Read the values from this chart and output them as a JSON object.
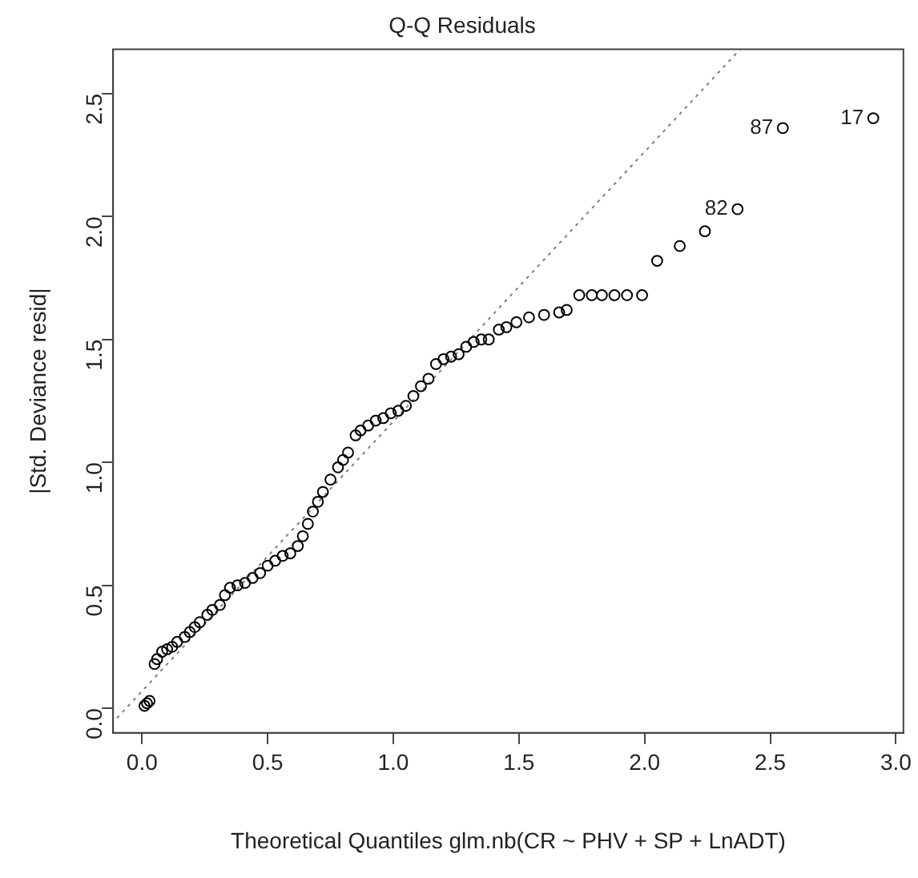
{
  "chart_data": {
    "type": "scatter",
    "title": "Q-Q Residuals",
    "xlabel": "Theoretical Quantiles glm.nb(CR ~ PHV + SP + LnADT)",
    "ylabel": "|Std. Deviance resid|",
    "xlim": [
      -0.115,
      3.03
    ],
    "ylim": [
      -0.1,
      2.68
    ],
    "xticks": [
      {
        "value": 0,
        "label": "0.0"
      },
      0.5,
      {
        "value": 1,
        "label": "1.0"
      },
      1.5,
      {
        "value": 2,
        "label": "2.0"
      },
      2.5,
      {
        "value": 3,
        "label": "3.0"
      }
    ],
    "yticks": [
      {
        "value": 0,
        "label": "0.0"
      },
      0.5,
      {
        "value": 1,
        "label": "1.0"
      },
      1.5,
      {
        "value": 2,
        "label": "2.0"
      },
      2.5
    ],
    "grid": false,
    "series": [
      {
        "color": "#000000",
        "marker": "circle",
        "x": [
          0.01,
          0.02,
          0.03,
          0.05,
          0.06,
          0.08,
          0.1,
          0.12,
          0.14,
          0.17,
          0.19,
          0.21,
          0.23,
          0.26,
          0.28,
          0.31,
          0.33,
          0.35,
          0.38,
          0.41,
          0.44,
          0.47,
          0.5,
          0.53,
          0.56,
          0.59,
          0.62,
          0.64,
          0.66,
          0.68,
          0.7,
          0.72,
          0.75,
          0.78,
          0.8,
          0.82,
          0.85,
          0.87,
          0.9,
          0.93,
          0.96,
          0.99,
          1.02,
          1.05,
          1.08,
          1.11,
          1.14,
          1.17,
          1.2,
          1.23,
          1.26,
          1.29,
          1.32,
          1.35,
          1.38,
          1.42,
          1.45,
          1.49,
          1.54,
          1.6,
          1.66,
          1.69,
          1.74,
          1.79,
          1.83,
          1.88,
          1.93,
          1.99,
          2.05,
          2.14,
          2.24,
          2.37,
          2.55,
          2.91
        ],
        "values": [
          0.01,
          0.02,
          0.03,
          0.18,
          0.2,
          0.23,
          0.24,
          0.25,
          0.27,
          0.29,
          0.31,
          0.33,
          0.35,
          0.38,
          0.4,
          0.42,
          0.46,
          0.49,
          0.5,
          0.51,
          0.53,
          0.55,
          0.58,
          0.6,
          0.62,
          0.63,
          0.66,
          0.7,
          0.75,
          0.8,
          0.84,
          0.88,
          0.93,
          0.98,
          1.01,
          1.04,
          1.11,
          1.13,
          1.15,
          1.17,
          1.18,
          1.2,
          1.21,
          1.23,
          1.27,
          1.31,
          1.34,
          1.4,
          1.42,
          1.43,
          1.44,
          1.47,
          1.49,
          1.5,
          1.5,
          1.54,
          1.55,
          1.57,
          1.59,
          1.6,
          1.61,
          1.62,
          1.68,
          1.68,
          1.68,
          1.68,
          1.68,
          1.68,
          1.82,
          1.88,
          1.94,
          2.03,
          2.36,
          2.4
        ]
      },
      {
        "type": "line",
        "marker": "none",
        "color": "#808080",
        "line_style": "dotted",
        "x": [
          -0.1,
          2.38
        ],
        "values": [
          -0.04,
          2.68
        ]
      }
    ],
    "annotations": [
      {
        "text": "17",
        "x": 2.91,
        "y": 2.4
      },
      {
        "text": "87",
        "x": 2.55,
        "y": 2.36
      },
      {
        "text": "82",
        "x": 2.37,
        "y": 2.03
      }
    ]
  }
}
